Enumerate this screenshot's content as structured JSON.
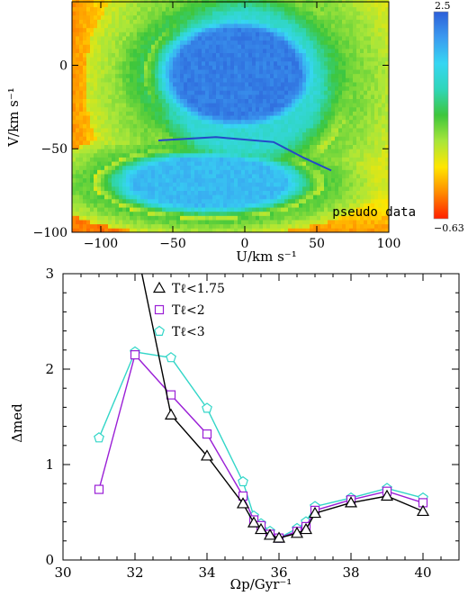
{
  "chart_data": [
    {
      "type": "heatmap",
      "title": "",
      "xlabel": "U/km s⁻¹",
      "ylabel": "V/km s⁻¹",
      "xlim": [
        -120,
        100
      ],
      "ylim": [
        -100,
        38
      ],
      "xticks": [
        -100,
        -50,
        0,
        50,
        100
      ],
      "yticks": [
        -100,
        -50,
        0
      ],
      "annotation": "pseudo data",
      "colorbar": {
        "min": -0.63,
        "max": 2.5,
        "min_label": "−0.63",
        "max_label": "2.5",
        "colors": [
          "#ff1f00",
          "#ff8a00",
          "#ffe600",
          "#a8e63a",
          "#3ec63c",
          "#2fd6b8",
          "#36d6f2",
          "#3b9bf0",
          "#2c5fd8"
        ]
      },
      "features": [
        {
          "name": "halo",
          "center": [
            0,
            -10
          ],
          "radius": [
            75,
            60
          ],
          "value": 1.5
        },
        {
          "name": "dark core",
          "center": [
            -5,
            -5
          ],
          "radius": [
            65,
            40
          ],
          "value": 2.3
        },
        {
          "name": "lower lobe",
          "center": [
            -25,
            -70
          ],
          "radius": [
            80,
            22
          ],
          "value": 1.9
        }
      ],
      "background_value": 0.35,
      "ridge": {
        "x": [
          -60,
          -20,
          20,
          40,
          60
        ],
        "y": [
          -45,
          -43,
          -46,
          -55,
          -63
        ]
      }
    },
    {
      "type": "line",
      "title": "",
      "xlabel": "Ωp/Gyr⁻¹",
      "ylabel": "Δmed",
      "xlim": [
        30,
        41
      ],
      "ylim": [
        0,
        3
      ],
      "xticks": [
        30,
        32,
        34,
        36,
        38,
        40
      ],
      "yticks": [
        0,
        1,
        2,
        3
      ],
      "series": [
        {
          "name": "Tℓ<1.75",
          "color": "#000000",
          "marker": "triangle",
          "x": [
            32,
            33,
            34,
            35,
            35.3,
            35.5,
            35.75,
            36,
            36.5,
            36.75,
            37,
            38,
            39,
            40
          ],
          "y": [
            3.35,
            1.52,
            1.09,
            0.59,
            0.39,
            0.32,
            0.26,
            0.23,
            0.28,
            0.32,
            0.49,
            0.6,
            0.67,
            0.51
          ]
        },
        {
          "name": "Tℓ<2",
          "color": "#9a1fd6",
          "marker": "square",
          "x": [
            31,
            32,
            33,
            34,
            35,
            35.3,
            35.5,
            35.75,
            36,
            36.5,
            36.75,
            37,
            38,
            39,
            40
          ],
          "y": [
            0.74,
            2.15,
            1.73,
            1.32,
            0.67,
            0.42,
            0.36,
            0.27,
            0.23,
            0.3,
            0.35,
            0.52,
            0.63,
            0.72,
            0.6
          ]
        },
        {
          "name": "Tℓ<3",
          "color": "#33d6c8",
          "marker": "pentagon",
          "x": [
            31,
            32,
            33,
            34,
            35,
            35.3,
            35.5,
            35.75,
            36,
            36.5,
            36.75,
            37,
            38,
            39,
            40
          ],
          "y": [
            1.28,
            2.18,
            2.12,
            1.59,
            0.82,
            0.46,
            0.38,
            0.3,
            0.23,
            0.33,
            0.4,
            0.56,
            0.65,
            0.75,
            0.65
          ]
        }
      ],
      "legend": "top-left"
    }
  ]
}
